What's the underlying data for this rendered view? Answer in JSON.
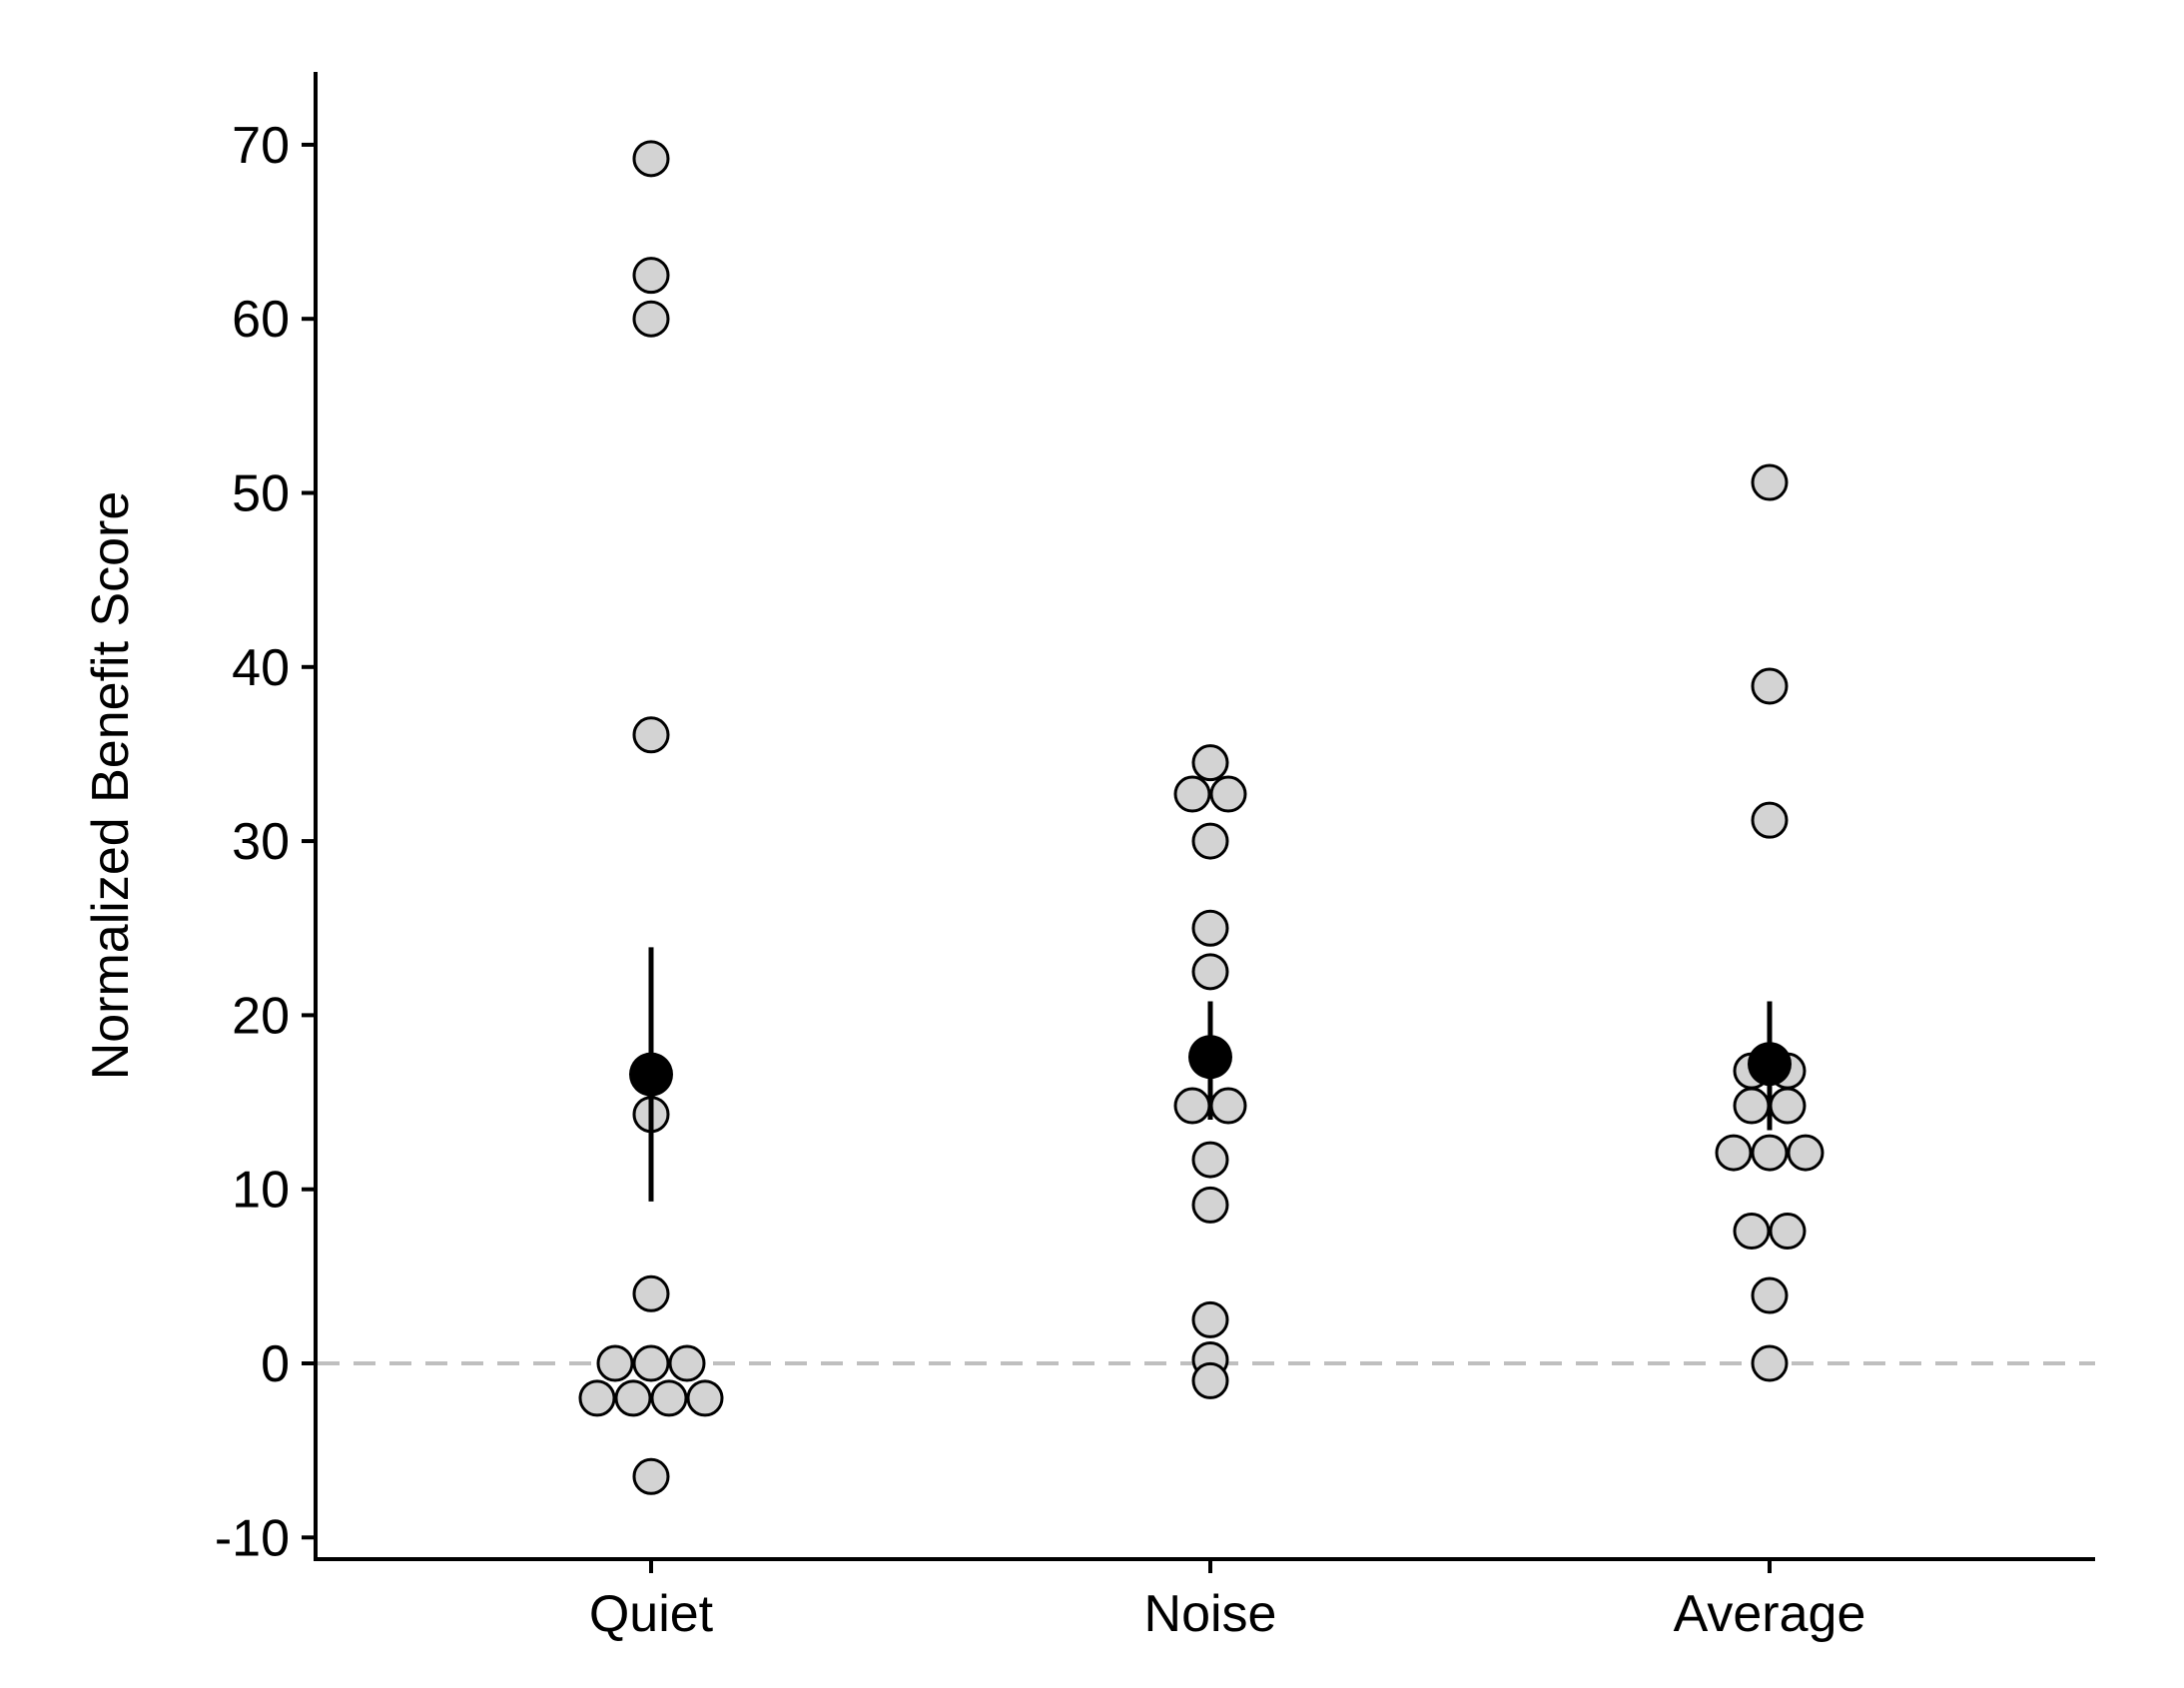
{
  "chart_data": {
    "type": "scatter",
    "title": "",
    "xlabel": "",
    "ylabel": "Normalized Benefit Score",
    "ylim": [
      -11,
      74
    ],
    "yticks": [
      -10,
      0,
      10,
      20,
      30,
      40,
      50,
      60,
      70
    ],
    "ytick_labels": [
      "-10",
      "0",
      "10",
      "20",
      "30",
      "40",
      "50",
      "60",
      "70"
    ],
    "categories": [
      "Quiet",
      "Noise",
      "Average"
    ],
    "reference_line": {
      "y": 0,
      "style": "dashed",
      "color": "#bfbfbf"
    },
    "grid": false,
    "legend": "none",
    "point_fill": "#d3d3d3",
    "point_stroke": "#000000",
    "mean_color": "#000000",
    "groups": [
      {
        "category": "Quiet",
        "points": [
          69.2,
          62.5,
          60.0,
          36.1,
          14.3,
          4.0,
          0.0,
          0.0,
          0.0,
          -2.0,
          -2.0,
          -2.0,
          -2.0,
          -6.5
        ],
        "mean": 16.6,
        "error": [
          9.3,
          23.9
        ]
      },
      {
        "category": "Noise",
        "points": [
          34.5,
          32.7,
          32.7,
          30.0,
          25.0,
          22.5,
          14.8,
          14.8,
          11.7,
          9.1,
          2.5,
          0.2,
          -1.0
        ],
        "mean": 17.6,
        "error": [
          14.0,
          20.8
        ]
      },
      {
        "category": "Average",
        "points": [
          50.6,
          38.9,
          31.2,
          16.8,
          16.8,
          14.8,
          14.8,
          12.1,
          12.1,
          12.1,
          7.6,
          7.6,
          3.9,
          0.0
        ],
        "mean": 17.2,
        "error": [
          13.4,
          20.8
        ]
      }
    ]
  }
}
